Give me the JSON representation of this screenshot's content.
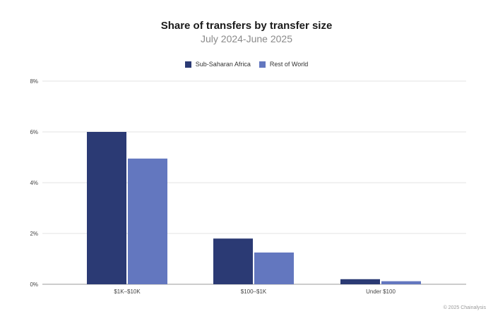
{
  "chart_data": {
    "type": "bar",
    "title": "Share of transfers by transfer size",
    "subtitle": "July 2024-June 2025",
    "categories": [
      "$1K–$10K",
      "$100–$1K",
      "Under $100"
    ],
    "series": [
      {
        "name": "Sub-Saharan Africa",
        "color": "#2b3a74",
        "values": [
          6.0,
          1.8,
          0.2
        ]
      },
      {
        "name": "Rest of World",
        "color": "#6377bf",
        "values": [
          4.95,
          1.25,
          0.12
        ]
      }
    ],
    "ylim": [
      0,
      8
    ],
    "yticks": [
      0,
      2,
      4,
      6,
      8
    ],
    "ytick_labels": [
      "0%",
      "2%",
      "4%",
      "6%",
      "8%"
    ],
    "grid": true,
    "legend_position": "top-center",
    "source_note": "© 2025 Chainalysis"
  }
}
